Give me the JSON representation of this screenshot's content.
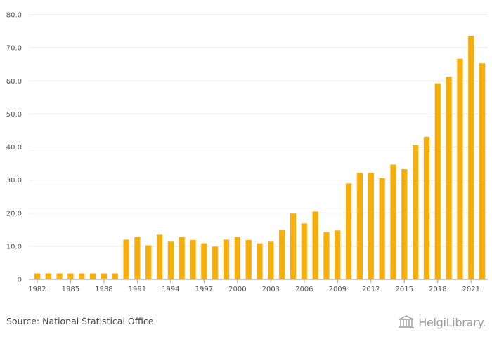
{
  "footer": {
    "source": "Source: National Statistical Office",
    "logo_text": "HelgiLibrary."
  },
  "colors": {
    "bar": "#F5AE0B",
    "grid": "#e6e6e6",
    "axis": "#999999"
  },
  "chart_data": {
    "type": "bar",
    "title": "",
    "xlabel": "",
    "ylabel": "",
    "ylim": [
      0,
      80
    ],
    "yticks": [
      "0",
      "10.0",
      "20.0",
      "30.0",
      "40.0",
      "50.0",
      "60.0",
      "70.0",
      "80.0"
    ],
    "xtick_labels": [
      "1982",
      "1985",
      "1988",
      "1991",
      "1994",
      "1997",
      "2000",
      "2003",
      "2006",
      "2009",
      "2012",
      "2015",
      "2018",
      "2021"
    ],
    "grid": true,
    "legend": "none",
    "categories": [
      "1982",
      "1983",
      "1984",
      "1985",
      "1986",
      "1987",
      "1988",
      "1989",
      "1990",
      "1991",
      "1992",
      "1993",
      "1994",
      "1995",
      "1996",
      "1997",
      "1998",
      "1999",
      "2000",
      "2001",
      "2002",
      "2003",
      "2004",
      "2005",
      "2006",
      "2007",
      "2008",
      "2009",
      "2010",
      "2011",
      "2012",
      "2013",
      "2014",
      "2015",
      "2016",
      "2017",
      "2018",
      "2019",
      "2020",
      "2021",
      "2022"
    ],
    "values": [
      1.8,
      1.8,
      1.8,
      1.8,
      1.8,
      1.8,
      1.8,
      1.8,
      12.0,
      12.8,
      10.3,
      13.5,
      11.4,
      12.8,
      11.9,
      10.9,
      9.9,
      12.0,
      12.8,
      11.9,
      10.9,
      11.4,
      14.9,
      19.9,
      16.9,
      20.5,
      14.3,
      14.8,
      29.0,
      32.2,
      32.2,
      30.6,
      34.7,
      33.3,
      40.6,
      43.1,
      59.3,
      61.3,
      66.7,
      73.6,
      65.3
    ]
  }
}
